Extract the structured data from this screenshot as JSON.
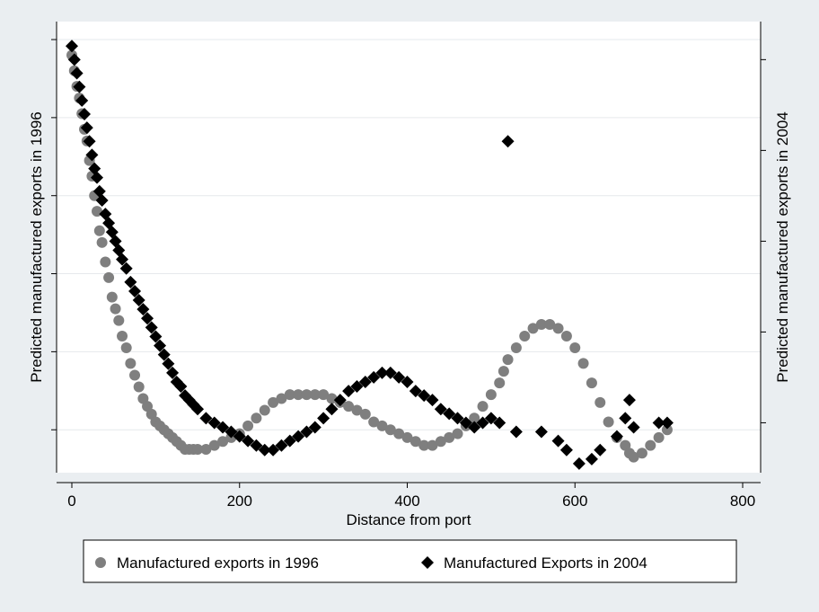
{
  "chart_data": {
    "type": "scatter",
    "title": "",
    "xlabel": "Distance from port",
    "ylabel_left": "Predicted manufactured exports in 1996",
    "ylabel_right": "Predicted manufactured exports in 2004",
    "xlim": [
      0,
      800
    ],
    "x_ticks": [
      0,
      200,
      400,
      600,
      800
    ],
    "y_left_ticks": [
      0,
      1,
      2,
      3,
      4,
      5
    ],
    "y_right_ticks": [
      0,
      1,
      2,
      3,
      4
    ],
    "y_left_range": [
      -0.55,
      5.15
    ],
    "y_right_range": [
      -0.55,
      4.35
    ],
    "y_tick_labels_visible": false,
    "grid": "horizontal",
    "legend_position": "bottom",
    "series": [
      {
        "name": "Manufactured exports in 1996",
        "axis": "left",
        "marker": "circle",
        "color": "#7f7f7f",
        "points": [
          [
            0,
            4.8
          ],
          [
            3,
            4.6
          ],
          [
            6,
            4.4
          ],
          [
            9,
            4.25
          ],
          [
            12,
            4.05
          ],
          [
            15,
            3.85
          ],
          [
            18,
            3.7
          ],
          [
            21,
            3.45
          ],
          [
            24,
            3.25
          ],
          [
            27,
            3.0
          ],
          [
            30,
            2.8
          ],
          [
            33,
            2.55
          ],
          [
            36,
            2.4
          ],
          [
            40,
            2.15
          ],
          [
            44,
            1.95
          ],
          [
            48,
            1.7
          ],
          [
            52,
            1.55
          ],
          [
            56,
            1.4
          ],
          [
            60,
            1.2
          ],
          [
            65,
            1.05
          ],
          [
            70,
            0.85
          ],
          [
            75,
            0.7
          ],
          [
            80,
            0.55
          ],
          [
            85,
            0.4
          ],
          [
            90,
            0.3
          ],
          [
            95,
            0.2
          ],
          [
            100,
            0.1
          ],
          [
            105,
            0.05
          ],
          [
            110,
            0.0
          ],
          [
            115,
            -0.05
          ],
          [
            120,
            -0.1
          ],
          [
            125,
            -0.15
          ],
          [
            130,
            -0.2
          ],
          [
            135,
            -0.25
          ],
          [
            140,
            -0.25
          ],
          [
            145,
            -0.25
          ],
          [
            150,
            -0.25
          ],
          [
            160,
            -0.25
          ],
          [
            170,
            -0.2
          ],
          [
            180,
            -0.15
          ],
          [
            190,
            -0.1
          ],
          [
            200,
            -0.05
          ],
          [
            210,
            0.05
          ],
          [
            220,
            0.15
          ],
          [
            230,
            0.25
          ],
          [
            240,
            0.35
          ],
          [
            250,
            0.4
          ],
          [
            260,
            0.45
          ],
          [
            270,
            0.45
          ],
          [
            280,
            0.45
          ],
          [
            290,
            0.45
          ],
          [
            300,
            0.45
          ],
          [
            310,
            0.4
          ],
          [
            320,
            0.35
          ],
          [
            330,
            0.3
          ],
          [
            340,
            0.25
          ],
          [
            350,
            0.2
          ],
          [
            360,
            0.1
          ],
          [
            370,
            0.05
          ],
          [
            380,
            0.0
          ],
          [
            390,
            -0.05
          ],
          [
            400,
            -0.1
          ],
          [
            410,
            -0.15
          ],
          [
            420,
            -0.2
          ],
          [
            430,
            -0.2
          ],
          [
            440,
            -0.15
          ],
          [
            450,
            -0.1
          ],
          [
            460,
            -0.05
          ],
          [
            470,
            0.05
          ],
          [
            480,
            0.15
          ],
          [
            490,
            0.3
          ],
          [
            500,
            0.45
          ],
          [
            510,
            0.6
          ],
          [
            515,
            0.75
          ],
          [
            520,
            0.9
          ],
          [
            530,
            1.05
          ],
          [
            540,
            1.2
          ],
          [
            550,
            1.3
          ],
          [
            560,
            1.35
          ],
          [
            570,
            1.35
          ],
          [
            580,
            1.3
          ],
          [
            590,
            1.2
          ],
          [
            600,
            1.05
          ],
          [
            610,
            0.85
          ],
          [
            620,
            0.6
          ],
          [
            630,
            0.35
          ],
          [
            640,
            0.1
          ],
          [
            650,
            -0.1
          ],
          [
            660,
            -0.2
          ],
          [
            665,
            -0.3
          ],
          [
            670,
            -0.35
          ],
          [
            680,
            -0.3
          ],
          [
            690,
            -0.2
          ],
          [
            700,
            -0.1
          ],
          [
            710,
            0.0
          ]
        ]
      },
      {
        "name": "Manufactured Exports in 2004",
        "axis": "right",
        "marker": "diamond",
        "color": "#000000",
        "points": [
          [
            0,
            4.15
          ],
          [
            3,
            4.0
          ],
          [
            6,
            3.85
          ],
          [
            9,
            3.7
          ],
          [
            12,
            3.55
          ],
          [
            15,
            3.4
          ],
          [
            18,
            3.25
          ],
          [
            21,
            3.1
          ],
          [
            24,
            2.95
          ],
          [
            27,
            2.8
          ],
          [
            30,
            2.7
          ],
          [
            33,
            2.55
          ],
          [
            36,
            2.45
          ],
          [
            40,
            2.3
          ],
          [
            44,
            2.2
          ],
          [
            48,
            2.1
          ],
          [
            52,
            2.0
          ],
          [
            56,
            1.9
          ],
          [
            60,
            1.8
          ],
          [
            65,
            1.7
          ],
          [
            70,
            1.55
          ],
          [
            75,
            1.45
          ],
          [
            80,
            1.35
          ],
          [
            85,
            1.25
          ],
          [
            90,
            1.15
          ],
          [
            95,
            1.05
          ],
          [
            100,
            0.95
          ],
          [
            105,
            0.85
          ],
          [
            110,
            0.75
          ],
          [
            115,
            0.65
          ],
          [
            120,
            0.55
          ],
          [
            125,
            0.45
          ],
          [
            130,
            0.4
          ],
          [
            135,
            0.3
          ],
          [
            140,
            0.25
          ],
          [
            145,
            0.2
          ],
          [
            150,
            0.15
          ],
          [
            160,
            0.05
          ],
          [
            170,
            0.0
          ],
          [
            180,
            -0.05
          ],
          [
            190,
            -0.1
          ],
          [
            200,
            -0.15
          ],
          [
            210,
            -0.2
          ],
          [
            220,
            -0.25
          ],
          [
            230,
            -0.3
          ],
          [
            240,
            -0.3
          ],
          [
            250,
            -0.25
          ],
          [
            260,
            -0.2
          ],
          [
            270,
            -0.15
          ],
          [
            280,
            -0.1
          ],
          [
            290,
            -0.05
          ],
          [
            300,
            0.05
          ],
          [
            310,
            0.15
          ],
          [
            320,
            0.25
          ],
          [
            330,
            0.35
          ],
          [
            340,
            0.4
          ],
          [
            350,
            0.45
          ],
          [
            360,
            0.5
          ],
          [
            370,
            0.55
          ],
          [
            380,
            0.55
          ],
          [
            390,
            0.5
          ],
          [
            400,
            0.45
          ],
          [
            410,
            0.35
          ],
          [
            420,
            0.3
          ],
          [
            430,
            0.25
          ],
          [
            440,
            0.15
          ],
          [
            450,
            0.1
          ],
          [
            460,
            0.05
          ],
          [
            470,
            0.0
          ],
          [
            480,
            -0.05
          ],
          [
            490,
            0.0
          ],
          [
            500,
            0.05
          ],
          [
            510,
            0.0
          ],
          [
            520,
            3.1
          ],
          [
            530,
            -0.1
          ],
          [
            560,
            -0.1
          ],
          [
            580,
            -0.2
          ],
          [
            590,
            -0.3
          ],
          [
            605,
            -0.45
          ],
          [
            620,
            -0.4
          ],
          [
            630,
            -0.3
          ],
          [
            650,
            -0.15
          ],
          [
            660,
            0.05
          ],
          [
            665,
            0.25
          ],
          [
            670,
            -0.05
          ],
          [
            700,
            0.0
          ],
          [
            710,
            0.0
          ]
        ]
      }
    ]
  }
}
